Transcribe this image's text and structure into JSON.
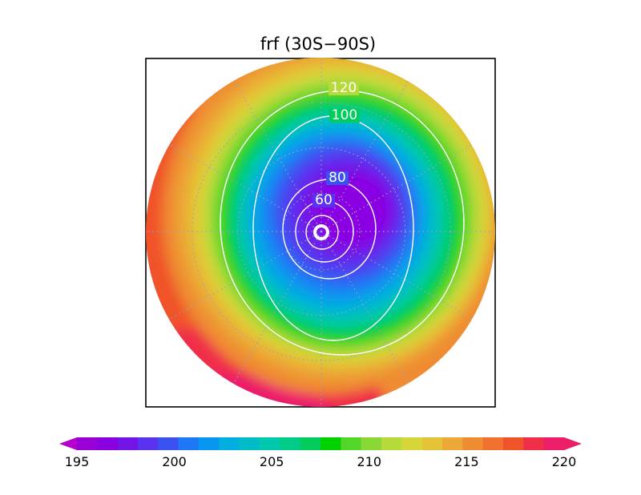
{
  "chart_data": {
    "type": "heatmap",
    "projection": "south-polar-stereographic",
    "title": "frf (30S−90S)",
    "grid": true,
    "colorbar": {
      "placement": "bottom",
      "min": 195,
      "max": 220,
      "step": 1,
      "extend": "both",
      "ticks": [
        195,
        200,
        205,
        210,
        215,
        220
      ],
      "colors": [
        "#9a00d8",
        "#8a00e2",
        "#7314e8",
        "#5a32f0",
        "#3b52f2",
        "#1e78f5",
        "#0796f0",
        "#00aee0",
        "#00bcc8",
        "#00c8ac",
        "#00cc88",
        "#00cd5c",
        "#00d200",
        "#52d62a",
        "#8ad836",
        "#b6da3a",
        "#d6d63a",
        "#e5c236",
        "#eba836",
        "#ef8c32",
        "#f0722e",
        "#f0522a",
        "#f02e4a",
        "#ec1e6a"
      ],
      "over_color": "#ec1e6a",
      "under_color": "#b400cc"
    },
    "shading": {
      "center_value": 195,
      "inner_ring_value": 200,
      "green_ring_value": 207,
      "outer_edge_value": 211,
      "max_sector": "lower-left",
      "max_sector_value": 220,
      "left_edge_value": 216
    },
    "contours": {
      "color": "#ffffff",
      "levels": [
        20,
        40,
        60,
        80,
        100,
        120
      ],
      "labeled_levels": [
        "60",
        "80",
        "100",
        "120"
      ]
    }
  }
}
